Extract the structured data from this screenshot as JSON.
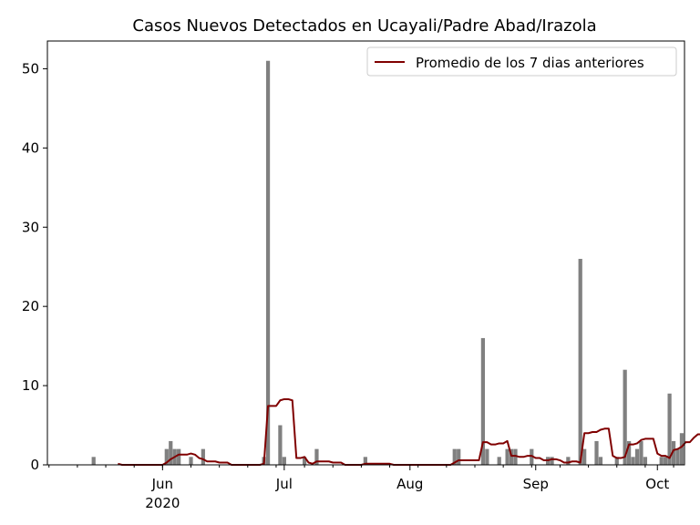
{
  "chart_data": {
    "type": "bar",
    "title": "Casos Nuevos Detectados en Ucayali/Padre Abad/Irazola",
    "xlabel": "",
    "ylabel": "",
    "start_date": "2020-05-15",
    "x_ticks": [
      {
        "date": "2020-06-01",
        "label": "Jun",
        "sublabel": "2020"
      },
      {
        "date": "2020-07-01",
        "label": "Jul",
        "sublabel": ""
      },
      {
        "date": "2020-08-01",
        "label": "Aug",
        "sublabel": ""
      },
      {
        "date": "2020-09-01",
        "label": "Sep",
        "sublabel": ""
      },
      {
        "date": "2020-10-01",
        "label": "Oct",
        "sublabel": ""
      }
    ],
    "ylim": [
      0,
      53.5
    ],
    "y_ticks": [
      0,
      10,
      20,
      30,
      40,
      50
    ],
    "grid": false,
    "legend_position": "top-right",
    "series": [
      {
        "name": "Casos nuevos",
        "kind": "bar",
        "color": "#808080",
        "values": [
          1,
          0,
          0,
          0,
          0,
          0,
          0,
          0,
          0,
          0,
          0,
          0,
          0,
          0,
          0,
          0,
          0,
          0,
          2,
          3,
          2,
          2,
          0,
          0,
          1,
          0,
          0,
          2,
          0,
          0,
          0,
          0,
          0,
          0,
          0,
          0,
          0,
          0,
          0,
          0,
          0,
          0,
          1,
          51,
          0,
          0,
          5,
          1,
          0,
          0,
          0,
          0,
          1,
          0,
          0,
          2,
          0,
          0,
          0,
          0,
          0,
          0,
          0,
          0,
          0,
          0,
          0,
          1,
          0,
          0,
          0,
          0,
          0,
          0,
          0,
          0,
          0,
          0,
          0,
          0,
          0,
          0,
          0,
          0,
          0,
          0,
          0,
          0,
          0,
          2,
          2,
          0,
          0,
          0,
          0,
          0,
          16,
          2,
          0,
          0,
          1,
          0,
          2,
          2,
          2,
          0,
          0,
          0,
          2,
          0,
          0,
          0,
          1,
          1,
          0,
          0,
          0,
          1,
          0,
          0,
          26,
          2,
          0,
          0,
          3,
          1,
          0,
          0,
          0,
          1,
          0,
          12,
          3,
          1,
          2,
          3,
          1,
          0,
          0,
          0,
          1,
          1,
          9,
          3,
          2,
          4,
          0,
          8,
          1,
          0,
          9,
          6,
          0,
          0,
          0,
          0,
          0,
          1,
          1,
          0,
          0,
          0,
          1,
          0,
          1,
          1
        ],
        "value_labels": []
      },
      {
        "name": "Promedio de los 7 dias anteriores",
        "kind": "line",
        "color": "#800000",
        "values": [
          null,
          null,
          null,
          null,
          null,
          null,
          0.14,
          0,
          0,
          0,
          0,
          0,
          0,
          0,
          0,
          0,
          0,
          0,
          0.29,
          0.71,
          1,
          1.29,
          1.29,
          1.29,
          1.43,
          1.29,
          0.86,
          0.71,
          0.43,
          0.43,
          0.43,
          0.29,
          0.29,
          0.29,
          0,
          0,
          0,
          0,
          0,
          0,
          0,
          0,
          0.14,
          7.43,
          7.43,
          7.43,
          8.14,
          8.29,
          8.29,
          8.14,
          0.86,
          0.86,
          1,
          0.29,
          0.14,
          0.43,
          0.43,
          0.43,
          0.43,
          0.29,
          0.29,
          0.29,
          0,
          0,
          0,
          0,
          0,
          0.14,
          0.14,
          0.14,
          0.14,
          0.14,
          0.14,
          0.14,
          0,
          0,
          0,
          0,
          0,
          0,
          0,
          0,
          0,
          0,
          0,
          0,
          0,
          0,
          0,
          0.29,
          0.57,
          0.57,
          0.57,
          0.57,
          0.57,
          0.57,
          2.86,
          2.86,
          2.57,
          2.57,
          2.71,
          2.71,
          3,
          1.14,
          1.14,
          1,
          1,
          1.14,
          1.14,
          0.86,
          0.86,
          0.57,
          0.57,
          0.71,
          0.71,
          0.57,
          0.29,
          0.29,
          0.43,
          0.43,
          0.29,
          4,
          4,
          4.14,
          4.14,
          4.43,
          4.57,
          4.57,
          1.14,
          0.86,
          0.86,
          1,
          2.57,
          2.57,
          2.71,
          3.14,
          3.29,
          3.29,
          3.29,
          1.43,
          1.14,
          1.14,
          0.86,
          1.86,
          2,
          2.29,
          2.86,
          2.86,
          3.43,
          3.86,
          3.86,
          2.71,
          3.43,
          4,
          3.43,
          3.43,
          2.29,
          2.29,
          2.29,
          1.14,
          0.29,
          0.29,
          0.29,
          0.43,
          0.43,
          0.29,
          0.43,
          0.43
        ]
      }
    ]
  }
}
